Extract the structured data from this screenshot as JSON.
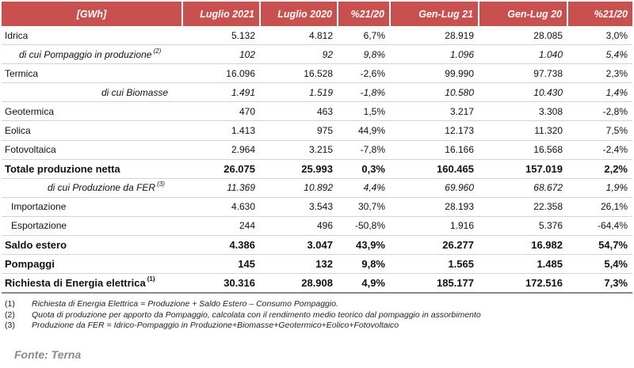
{
  "table": {
    "headers": [
      "[GWh]",
      "Luglio 2021",
      "Luglio 2020",
      "%21/20",
      "Gen-Lug 21",
      "Gen-Lug 20",
      "%21/20"
    ],
    "rows": [
      {
        "label": "Idrica",
        "sup": "",
        "style": "",
        "cells": [
          "5.132",
          "4.812",
          "6,7%",
          "28.919",
          "28.085",
          "3,0%"
        ]
      },
      {
        "label": "di cui Pompaggio in produzione",
        "sup": "(2)",
        "style": "sub",
        "cells": [
          "102",
          "92",
          "9,8%",
          "1.096",
          "1.040",
          "5,4%"
        ]
      },
      {
        "label": "Termica",
        "sup": "",
        "style": "",
        "cells": [
          "16.096",
          "16.528",
          "-2,6%",
          "99.990",
          "97.738",
          "2,3%"
        ]
      },
      {
        "label": "di cui Biomasse",
        "sup": "",
        "style": "sub sub2",
        "cells": [
          "1.491",
          "1.519",
          "-1,8%",
          "10.580",
          "10.430",
          "1,4%"
        ]
      },
      {
        "label": "Geotermica",
        "sup": "",
        "style": "",
        "cells": [
          "470",
          "463",
          "1,5%",
          "3.217",
          "3.308",
          "-2,8%"
        ]
      },
      {
        "label": "Eolica",
        "sup": "",
        "style": "",
        "cells": [
          "1.413",
          "975",
          "44,9%",
          "12.173",
          "11.320",
          "7,5%"
        ]
      },
      {
        "label": "Fotovoltaica",
        "sup": "",
        "style": "",
        "cells": [
          "2.964",
          "3.215",
          "-7,8%",
          "16.166",
          "16.568",
          "-2,4%"
        ]
      },
      {
        "label": "Totale produzione netta",
        "sup": "",
        "style": "bold",
        "cells": [
          "26.075",
          "25.993",
          "0,3%",
          "160.465",
          "157.019",
          "2,2%"
        ]
      },
      {
        "label": "di cui Produzione da FER",
        "sup": "(3)",
        "style": "sub sub3",
        "cells": [
          "11.369",
          "10.892",
          "4,4%",
          "69.960",
          "68.672",
          "1,9%"
        ]
      },
      {
        "label": "Importazione",
        "sup": "",
        "style": "indent",
        "cells": [
          "4.630",
          "3.543",
          "30,7%",
          "28.193",
          "22.358",
          "26,1%"
        ]
      },
      {
        "label": "Esportazione",
        "sup": "",
        "style": "indent",
        "cells": [
          "244",
          "496",
          "-50,8%",
          "1.916",
          "5.376",
          "-64,4%"
        ]
      },
      {
        "label": "Saldo estero",
        "sup": "",
        "style": "bold",
        "cells": [
          "4.386",
          "3.047",
          "43,9%",
          "26.277",
          "16.982",
          "54,7%"
        ]
      },
      {
        "label": "Pompaggi",
        "sup": "",
        "style": "bold",
        "cells": [
          "145",
          "132",
          "9,8%",
          "1.565",
          "1.485",
          "5,4%"
        ]
      },
      {
        "label": "Richiesta di Energia elettrica",
        "sup": "(1)",
        "style": "bigbold last",
        "cells": [
          "30.316",
          "28.908",
          "4,9%",
          "185.177",
          "172.516",
          "7,3%"
        ]
      }
    ]
  },
  "notes": [
    {
      "key": "(1)",
      "text": "Richiesta di Energia Elettrica = Produzione + Saldo Estero – Consumo Pompaggio."
    },
    {
      "key": "(2)",
      "text": "Quota di produzione per apporto da Pompaggio, calcolata con il rendimento medio teorico dal pompaggio in assorbimento"
    },
    {
      "key": "(3)",
      "text": "Produzione da FER = Idrico-Pompaggio in Produzione+Biomasse+Geotermico+Eolico+Fotovoltaico"
    }
  ],
  "source": "Fonte: Terna",
  "colors": {
    "header_bg": "#c8504e",
    "header_text": "#ffffff",
    "source_text": "#8a8a8a"
  }
}
